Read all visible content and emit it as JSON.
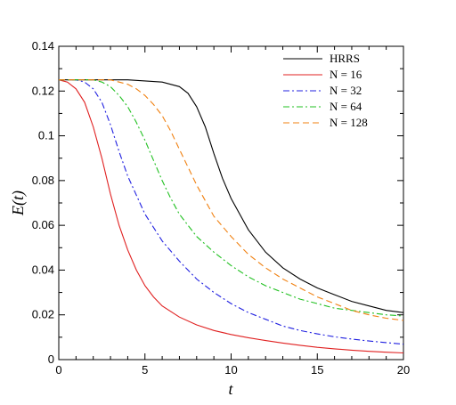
{
  "chart_data": {
    "type": "line",
    "title": "",
    "xlabel": "t",
    "ylabel": "E(t)",
    "xlim": [
      0,
      20
    ],
    "ylim": [
      0,
      0.14
    ],
    "xticks": [
      0,
      5,
      10,
      15,
      20
    ],
    "yticks": [
      0,
      0.02,
      0.04,
      0.06,
      0.08,
      0.1,
      0.12,
      0.14
    ],
    "xtick_labels": [
      "0",
      "5",
      "10",
      "15",
      "20"
    ],
    "ytick_labels": [
      "0",
      "0.02",
      "0.04",
      "0.06",
      "0.08",
      "0.1",
      "0.12",
      "0.14"
    ],
    "grid": false,
    "legend_position": "top-right",
    "series": [
      {
        "name": "HRRS",
        "color": "#000000",
        "dash": "solid",
        "x": [
          0,
          2,
          4,
          6,
          7,
          7.5,
          8,
          8.5,
          9,
          9.5,
          10,
          11,
          12,
          13,
          14,
          15,
          16,
          17,
          18,
          19,
          20
        ],
        "y": [
          0.125,
          0.125,
          0.125,
          0.124,
          0.122,
          0.119,
          0.113,
          0.104,
          0.092,
          0.081,
          0.072,
          0.058,
          0.048,
          0.041,
          0.036,
          0.032,
          0.029,
          0.026,
          0.024,
          0.022,
          0.021
        ]
      },
      {
        "name": "N = 16",
        "color": "#e02020",
        "dash": "solid",
        "x": [
          0,
          0.5,
          1,
          1.5,
          2,
          2.5,
          3,
          3.5,
          4,
          4.5,
          5,
          5.5,
          6,
          7,
          8,
          9,
          10,
          11,
          12,
          13,
          14,
          15,
          16,
          17,
          18,
          19,
          20
        ],
        "y": [
          0.125,
          0.124,
          0.121,
          0.115,
          0.104,
          0.09,
          0.074,
          0.06,
          0.049,
          0.04,
          0.033,
          0.028,
          0.024,
          0.019,
          0.0155,
          0.013,
          0.0112,
          0.0098,
          0.0085,
          0.0074,
          0.0064,
          0.0055,
          0.0048,
          0.0042,
          0.0037,
          0.0033,
          0.003
        ]
      },
      {
        "name": "N = 32",
        "color": "#2020e0",
        "dash": "dashdot",
        "x": [
          0,
          1,
          1.5,
          2,
          2.5,
          3,
          3.5,
          4,
          5,
          6,
          7,
          8,
          9,
          10,
          11,
          12,
          13,
          14,
          15,
          16,
          17,
          18,
          19,
          20
        ],
        "y": [
          0.125,
          0.125,
          0.124,
          0.121,
          0.115,
          0.105,
          0.093,
          0.082,
          0.065,
          0.053,
          0.044,
          0.036,
          0.03,
          0.025,
          0.021,
          0.018,
          0.015,
          0.013,
          0.0115,
          0.0102,
          0.0092,
          0.0083,
          0.0076,
          0.0069
        ]
      },
      {
        "name": "N = 64",
        "color": "#20c020",
        "dash": "dashdot",
        "x": [
          0,
          2,
          2.5,
          3,
          3.5,
          4,
          4.5,
          5,
          5.5,
          6,
          6.5,
          7,
          8,
          9,
          10,
          11,
          12,
          13,
          14,
          15,
          16,
          17,
          18,
          19,
          20
        ],
        "y": [
          0.125,
          0.125,
          0.124,
          0.122,
          0.118,
          0.113,
          0.106,
          0.098,
          0.089,
          0.08,
          0.072,
          0.065,
          0.055,
          0.048,
          0.042,
          0.037,
          0.033,
          0.03,
          0.027,
          0.025,
          0.023,
          0.022,
          0.021,
          0.02,
          0.0195
        ]
      },
      {
        "name": "N = 128",
        "color": "#f08010",
        "dash": "dashed",
        "x": [
          0,
          3,
          3.5,
          4,
          4.5,
          5,
          5.5,
          6,
          6.5,
          7,
          7.5,
          8,
          8.5,
          9,
          10,
          11,
          12,
          13,
          14,
          15,
          16,
          17,
          18,
          19,
          20
        ],
        "y": [
          0.125,
          0.125,
          0.124,
          0.123,
          0.121,
          0.118,
          0.114,
          0.109,
          0.102,
          0.094,
          0.086,
          0.078,
          0.071,
          0.064,
          0.055,
          0.047,
          0.041,
          0.036,
          0.032,
          0.028,
          0.025,
          0.022,
          0.02,
          0.0185,
          0.0175
        ]
      }
    ]
  }
}
